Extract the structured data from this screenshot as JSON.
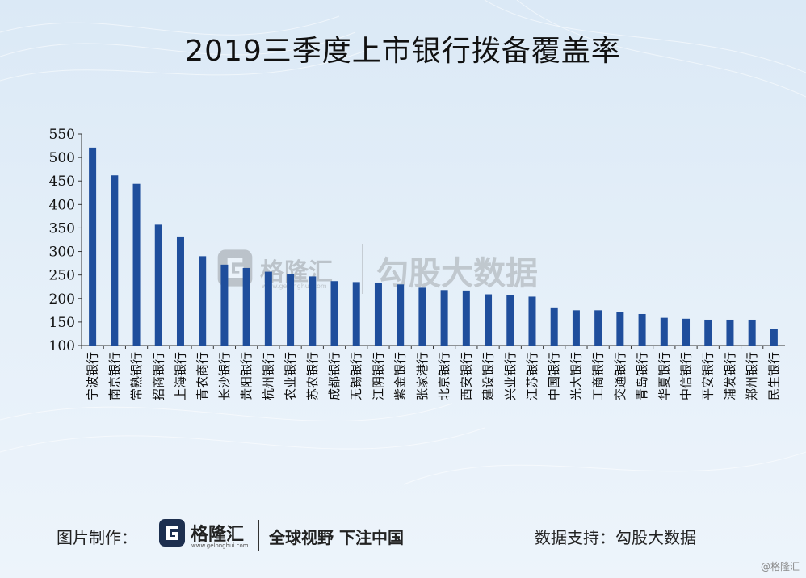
{
  "title": "2019三季度上市银行拨备覆盖率",
  "chart_data": {
    "type": "bar",
    "title": "2019三季度上市银行拨备覆盖率",
    "xlabel": "",
    "ylabel": "",
    "ylim": [
      100,
      550
    ],
    "yticks": [
      100,
      150,
      200,
      250,
      300,
      350,
      400,
      450,
      500,
      550
    ],
    "bar_color": "#1f4e9c",
    "categories": [
      "宁波银行",
      "南京银行",
      "常熟银行",
      "招商银行",
      "上海银行",
      "青农商行",
      "长沙银行",
      "贵阳银行",
      "杭州银行",
      "农业银行",
      "苏农银行",
      "成都银行",
      "无锡银行",
      "江阴银行",
      "紫金银行",
      "张家港行",
      "北京银行",
      "西安银行",
      "建设银行",
      "兴业银行",
      "江苏银行",
      "中国银行",
      "光大银行",
      "工商银行",
      "交通银行",
      "青岛银行",
      "华夏银行",
      "中信银行",
      "平安银行",
      "浦发银行",
      "郑州银行",
      "民生银行"
    ],
    "values": [
      521,
      462,
      444,
      357,
      332,
      290,
      272,
      265,
      257,
      252,
      247,
      237,
      235,
      234,
      230,
      223,
      218,
      217,
      209,
      208,
      204,
      181,
      175,
      175,
      172,
      167,
      159,
      157,
      155,
      155,
      155,
      135
    ]
  },
  "footer": {
    "left_label": "图片制作：",
    "brand": "格隆汇",
    "brand_domain": "www.gelonghui.com",
    "slogan": "全球视野 下注中国",
    "right_label": "数据支持：勾股大数据"
  },
  "watermark": {
    "brand": "格隆汇",
    "domain": "www.gelonghui.com",
    "text": "勾股大数据"
  },
  "corner_mark": "@格隆汇"
}
